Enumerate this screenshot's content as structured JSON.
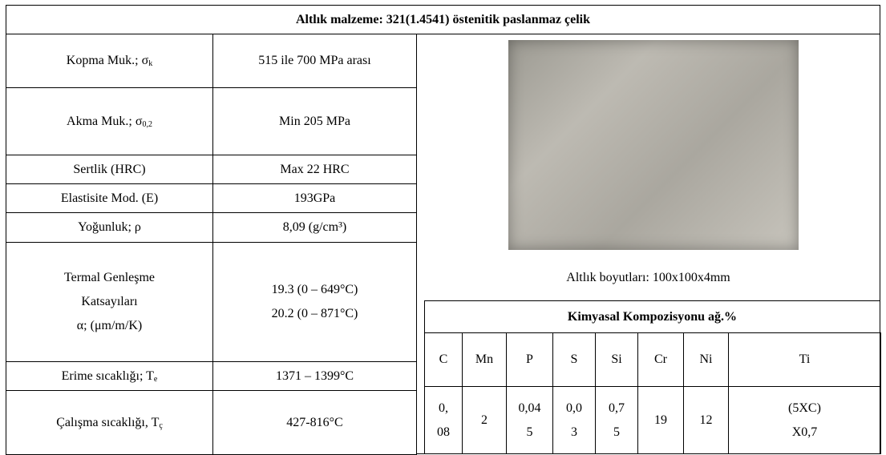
{
  "header": {
    "title": "Altlık malzeme: 321(1.4541) östenitik paslanmaz çelik"
  },
  "properties": [
    {
      "label": "Kopma Muk.; σ",
      "label_sub": "k",
      "value": "515 ile 700 MPa arası"
    },
    {
      "label": "Akma Muk.; σ",
      "label_sub": "0,2",
      "value": "Min 205 MPa"
    },
    {
      "label": "Sertlik (HRC)",
      "value": "Max 22 HRC"
    },
    {
      "label": "Elastisite Mod. (E)",
      "value": "193GPa"
    },
    {
      "label": "Yoğunluk; ρ",
      "value": "8,09 (g/cm³)"
    },
    {
      "label": [
        "Termal Genleşme",
        "Katsayıları",
        "α; (μm/m/K)"
      ],
      "value": [
        "19.3 (0 – 649°C)",
        "20.2 (0 – 871°C)"
      ]
    },
    {
      "label": "Erime sıcaklığı; T",
      "label_sub": "e",
      "value": "1371 – 1399°C"
    },
    {
      "label": "Çalışma sıcaklığı, T",
      "label_sub": "ç",
      "value": "427-816°C"
    }
  ],
  "image_caption": "Altlık boyutları: 100x100x4mm",
  "composition": {
    "title": "Kimyasal  Kompozisyonu  ağ.%",
    "elements": [
      "C",
      "Mn",
      "P",
      "S",
      "Si",
      "Cr",
      "Ni",
      "Ti"
    ],
    "values": [
      [
        "0,",
        "08"
      ],
      [
        "2"
      ],
      [
        "0,04",
        "5"
      ],
      [
        "0,0",
        "3"
      ],
      [
        "0,7",
        "5"
      ],
      [
        "19"
      ],
      [
        "12"
      ],
      [
        "(5XC)",
        "X0,7"
      ]
    ]
  }
}
